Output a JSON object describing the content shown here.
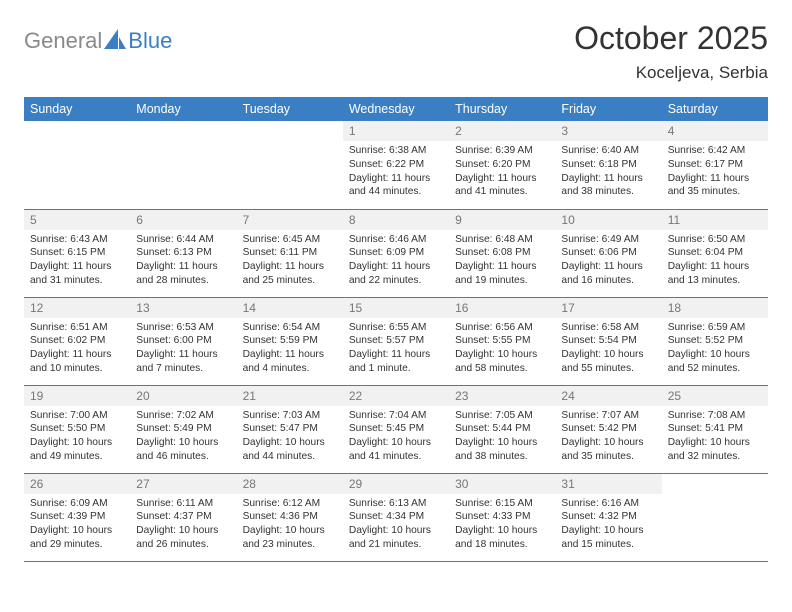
{
  "brand": {
    "text1": "General",
    "text2": "Blue",
    "color1": "#8a8a8a",
    "color2": "#3a7fc4"
  },
  "title": "October 2025",
  "location": "Koceljeva, Serbia",
  "header_bg": "#3a7fc4",
  "daynum_bg": "#f1f1f1",
  "border_color": "#3a7fc4",
  "dow": [
    "Sunday",
    "Monday",
    "Tuesday",
    "Wednesday",
    "Thursday",
    "Friday",
    "Saturday"
  ],
  "weeks": [
    [
      null,
      null,
      null,
      {
        "n": "1",
        "l1": "Sunrise: 6:38 AM",
        "l2": "Sunset: 6:22 PM",
        "l3": "Daylight: 11 hours",
        "l4": "and 44 minutes."
      },
      {
        "n": "2",
        "l1": "Sunrise: 6:39 AM",
        "l2": "Sunset: 6:20 PM",
        "l3": "Daylight: 11 hours",
        "l4": "and 41 minutes."
      },
      {
        "n": "3",
        "l1": "Sunrise: 6:40 AM",
        "l2": "Sunset: 6:18 PM",
        "l3": "Daylight: 11 hours",
        "l4": "and 38 minutes."
      },
      {
        "n": "4",
        "l1": "Sunrise: 6:42 AM",
        "l2": "Sunset: 6:17 PM",
        "l3": "Daylight: 11 hours",
        "l4": "and 35 minutes."
      }
    ],
    [
      {
        "n": "5",
        "l1": "Sunrise: 6:43 AM",
        "l2": "Sunset: 6:15 PM",
        "l3": "Daylight: 11 hours",
        "l4": "and 31 minutes."
      },
      {
        "n": "6",
        "l1": "Sunrise: 6:44 AM",
        "l2": "Sunset: 6:13 PM",
        "l3": "Daylight: 11 hours",
        "l4": "and 28 minutes."
      },
      {
        "n": "7",
        "l1": "Sunrise: 6:45 AM",
        "l2": "Sunset: 6:11 PM",
        "l3": "Daylight: 11 hours",
        "l4": "and 25 minutes."
      },
      {
        "n": "8",
        "l1": "Sunrise: 6:46 AM",
        "l2": "Sunset: 6:09 PM",
        "l3": "Daylight: 11 hours",
        "l4": "and 22 minutes."
      },
      {
        "n": "9",
        "l1": "Sunrise: 6:48 AM",
        "l2": "Sunset: 6:08 PM",
        "l3": "Daylight: 11 hours",
        "l4": "and 19 minutes."
      },
      {
        "n": "10",
        "l1": "Sunrise: 6:49 AM",
        "l2": "Sunset: 6:06 PM",
        "l3": "Daylight: 11 hours",
        "l4": "and 16 minutes."
      },
      {
        "n": "11",
        "l1": "Sunrise: 6:50 AM",
        "l2": "Sunset: 6:04 PM",
        "l3": "Daylight: 11 hours",
        "l4": "and 13 minutes."
      }
    ],
    [
      {
        "n": "12",
        "l1": "Sunrise: 6:51 AM",
        "l2": "Sunset: 6:02 PM",
        "l3": "Daylight: 11 hours",
        "l4": "and 10 minutes."
      },
      {
        "n": "13",
        "l1": "Sunrise: 6:53 AM",
        "l2": "Sunset: 6:00 PM",
        "l3": "Daylight: 11 hours",
        "l4": "and 7 minutes."
      },
      {
        "n": "14",
        "l1": "Sunrise: 6:54 AM",
        "l2": "Sunset: 5:59 PM",
        "l3": "Daylight: 11 hours",
        "l4": "and 4 minutes."
      },
      {
        "n": "15",
        "l1": "Sunrise: 6:55 AM",
        "l2": "Sunset: 5:57 PM",
        "l3": "Daylight: 11 hours",
        "l4": "and 1 minute."
      },
      {
        "n": "16",
        "l1": "Sunrise: 6:56 AM",
        "l2": "Sunset: 5:55 PM",
        "l3": "Daylight: 10 hours",
        "l4": "and 58 minutes."
      },
      {
        "n": "17",
        "l1": "Sunrise: 6:58 AM",
        "l2": "Sunset: 5:54 PM",
        "l3": "Daylight: 10 hours",
        "l4": "and 55 minutes."
      },
      {
        "n": "18",
        "l1": "Sunrise: 6:59 AM",
        "l2": "Sunset: 5:52 PM",
        "l3": "Daylight: 10 hours",
        "l4": "and 52 minutes."
      }
    ],
    [
      {
        "n": "19",
        "l1": "Sunrise: 7:00 AM",
        "l2": "Sunset: 5:50 PM",
        "l3": "Daylight: 10 hours",
        "l4": "and 49 minutes."
      },
      {
        "n": "20",
        "l1": "Sunrise: 7:02 AM",
        "l2": "Sunset: 5:49 PM",
        "l3": "Daylight: 10 hours",
        "l4": "and 46 minutes."
      },
      {
        "n": "21",
        "l1": "Sunrise: 7:03 AM",
        "l2": "Sunset: 5:47 PM",
        "l3": "Daylight: 10 hours",
        "l4": "and 44 minutes."
      },
      {
        "n": "22",
        "l1": "Sunrise: 7:04 AM",
        "l2": "Sunset: 5:45 PM",
        "l3": "Daylight: 10 hours",
        "l4": "and 41 minutes."
      },
      {
        "n": "23",
        "l1": "Sunrise: 7:05 AM",
        "l2": "Sunset: 5:44 PM",
        "l3": "Daylight: 10 hours",
        "l4": "and 38 minutes."
      },
      {
        "n": "24",
        "l1": "Sunrise: 7:07 AM",
        "l2": "Sunset: 5:42 PM",
        "l3": "Daylight: 10 hours",
        "l4": "and 35 minutes."
      },
      {
        "n": "25",
        "l1": "Sunrise: 7:08 AM",
        "l2": "Sunset: 5:41 PM",
        "l3": "Daylight: 10 hours",
        "l4": "and 32 minutes."
      }
    ],
    [
      {
        "n": "26",
        "l1": "Sunrise: 6:09 AM",
        "l2": "Sunset: 4:39 PM",
        "l3": "Daylight: 10 hours",
        "l4": "and 29 minutes."
      },
      {
        "n": "27",
        "l1": "Sunrise: 6:11 AM",
        "l2": "Sunset: 4:37 PM",
        "l3": "Daylight: 10 hours",
        "l4": "and 26 minutes."
      },
      {
        "n": "28",
        "l1": "Sunrise: 6:12 AM",
        "l2": "Sunset: 4:36 PM",
        "l3": "Daylight: 10 hours",
        "l4": "and 23 minutes."
      },
      {
        "n": "29",
        "l1": "Sunrise: 6:13 AM",
        "l2": "Sunset: 4:34 PM",
        "l3": "Daylight: 10 hours",
        "l4": "and 21 minutes."
      },
      {
        "n": "30",
        "l1": "Sunrise: 6:15 AM",
        "l2": "Sunset: 4:33 PM",
        "l3": "Daylight: 10 hours",
        "l4": "and 18 minutes."
      },
      {
        "n": "31",
        "l1": "Sunrise: 6:16 AM",
        "l2": "Sunset: 4:32 PM",
        "l3": "Daylight: 10 hours",
        "l4": "and 15 minutes."
      },
      null
    ]
  ]
}
